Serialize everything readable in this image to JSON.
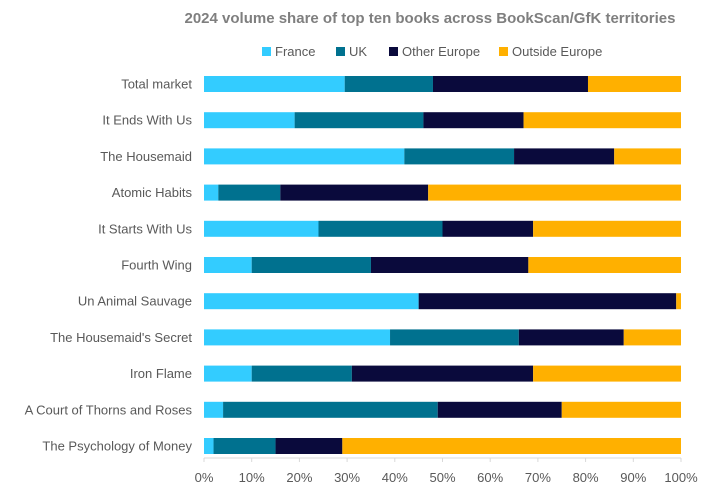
{
  "chart_data": {
    "type": "bar",
    "orientation": "horizontal",
    "stacked": "percent",
    "title": "2024 volume share of top ten books across BookScan/GfK territories",
    "xlabel": "",
    "ylabel": "",
    "xlim": [
      0,
      100
    ],
    "x_ticks": [
      "0%",
      "10%",
      "20%",
      "30%",
      "40%",
      "50%",
      "60%",
      "70%",
      "80%",
      "90%",
      "100%"
    ],
    "grid": false,
    "legend_position": "top",
    "categories": [
      "Total market",
      "It Ends With Us",
      "The Housemaid",
      "Atomic Habits",
      "It Starts With Us",
      "Fourth Wing",
      "Un Animal Sauvage",
      "The Housemaid's Secret",
      "Iron Flame",
      "A Court of Thorns and Roses",
      "The Psychology of Money"
    ],
    "series": [
      {
        "name": "France",
        "color": "#33ccff",
        "values": [
          29.5,
          19,
          42,
          3,
          24,
          10,
          45,
          39,
          10,
          4,
          2
        ]
      },
      {
        "name": "UK",
        "color": "#00718f",
        "values": [
          18.5,
          27,
          23,
          13,
          26,
          25,
          0,
          27,
          21,
          45,
          13
        ]
      },
      {
        "name": "Other Europe",
        "color": "#0a0a3c",
        "values": [
          32.5,
          21,
          21,
          31,
          19,
          33,
          54,
          22,
          38,
          26,
          14
        ]
      },
      {
        "name": "Outside Europe",
        "color": "#ffb000",
        "values": [
          19.5,
          33,
          14,
          53,
          31,
          32,
          1,
          12,
          31,
          25,
          71
        ]
      }
    ]
  }
}
